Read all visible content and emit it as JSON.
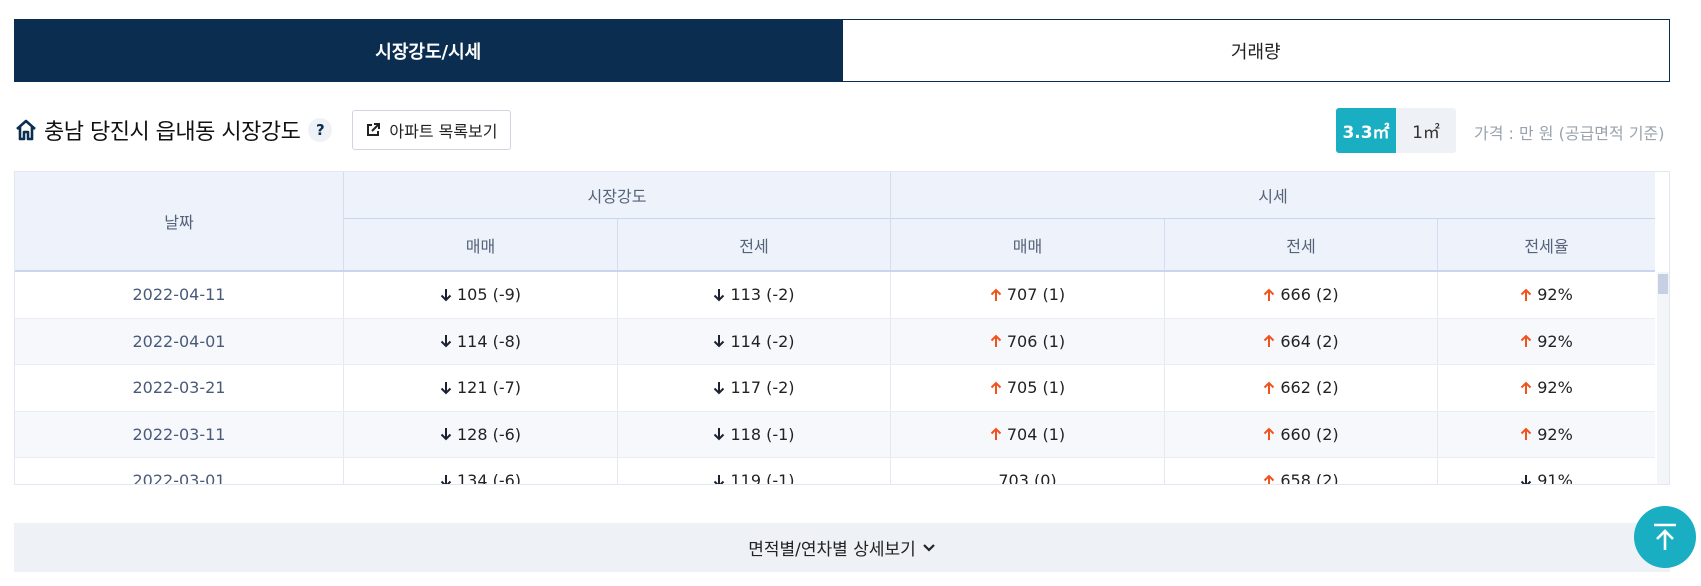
{
  "tabs": [
    {
      "label": "시장강도/시세",
      "active": true
    },
    {
      "label": "거래량",
      "active": false
    }
  ],
  "section": {
    "title": "충남 당진시 읍내동 시장강도",
    "help_label": "?",
    "list_button_label": "아파트 목록보기"
  },
  "units": {
    "option1": "3.3㎡",
    "option2": "1㎡",
    "selected": "3.3㎡"
  },
  "price_note": "가격 : 만 원 (공급면적 기준)",
  "table": {
    "headers": {
      "date": "날짜",
      "group1": "시장강도",
      "group2": "시세",
      "g1_sale": "매매",
      "g1_jeonse": "전세",
      "g2_sale": "매매",
      "g2_jeonse": "전세",
      "g2_ratio": "전세율"
    },
    "rows": [
      {
        "date": "2022-04-11",
        "s_sale": "105 (-9)",
        "s_jeonse": "113 (-2)",
        "p_sale": "707 (1)",
        "p_jeonse": "666 (2)",
        "ratio": "92%",
        "dir": [
          "down",
          "down",
          "up",
          "up",
          "up"
        ]
      },
      {
        "date": "2022-04-01",
        "s_sale": "114 (-8)",
        "s_jeonse": "114 (-2)",
        "p_sale": "706 (1)",
        "p_jeonse": "664 (2)",
        "ratio": "92%",
        "dir": [
          "down",
          "down",
          "up",
          "up",
          "up"
        ]
      },
      {
        "date": "2022-03-21",
        "s_sale": "121 (-7)",
        "s_jeonse": "117 (-2)",
        "p_sale": "705 (1)",
        "p_jeonse": "662 (2)",
        "ratio": "92%",
        "dir": [
          "down",
          "down",
          "up",
          "up",
          "up"
        ]
      },
      {
        "date": "2022-03-11",
        "s_sale": "128 (-6)",
        "s_jeonse": "118 (-1)",
        "p_sale": "704 (1)",
        "p_jeonse": "660 (2)",
        "ratio": "92%",
        "dir": [
          "down",
          "down",
          "up",
          "up",
          "up"
        ]
      },
      {
        "date": "2022-03-01",
        "s_sale": "134 (-6)",
        "s_jeonse": "119 (-1)",
        "p_sale": "703 (0)",
        "p_jeonse": "658 (2)",
        "ratio": "91%",
        "dir": [
          "down",
          "down",
          "none",
          "up",
          "down"
        ]
      }
    ]
  },
  "detail_button_label": "면적별/연차별 상세보기",
  "colors": {
    "navy": "#0b2e50",
    "teal": "#1aaec2",
    "up": "#f0531c",
    "down": "#1c2230"
  },
  "icons": {
    "home": "home-icon",
    "external": "external-link-icon",
    "up": "arrow-up-icon",
    "down": "arrow-down-icon",
    "chevron": "chevron-down-icon",
    "top": "scroll-top-icon"
  }
}
